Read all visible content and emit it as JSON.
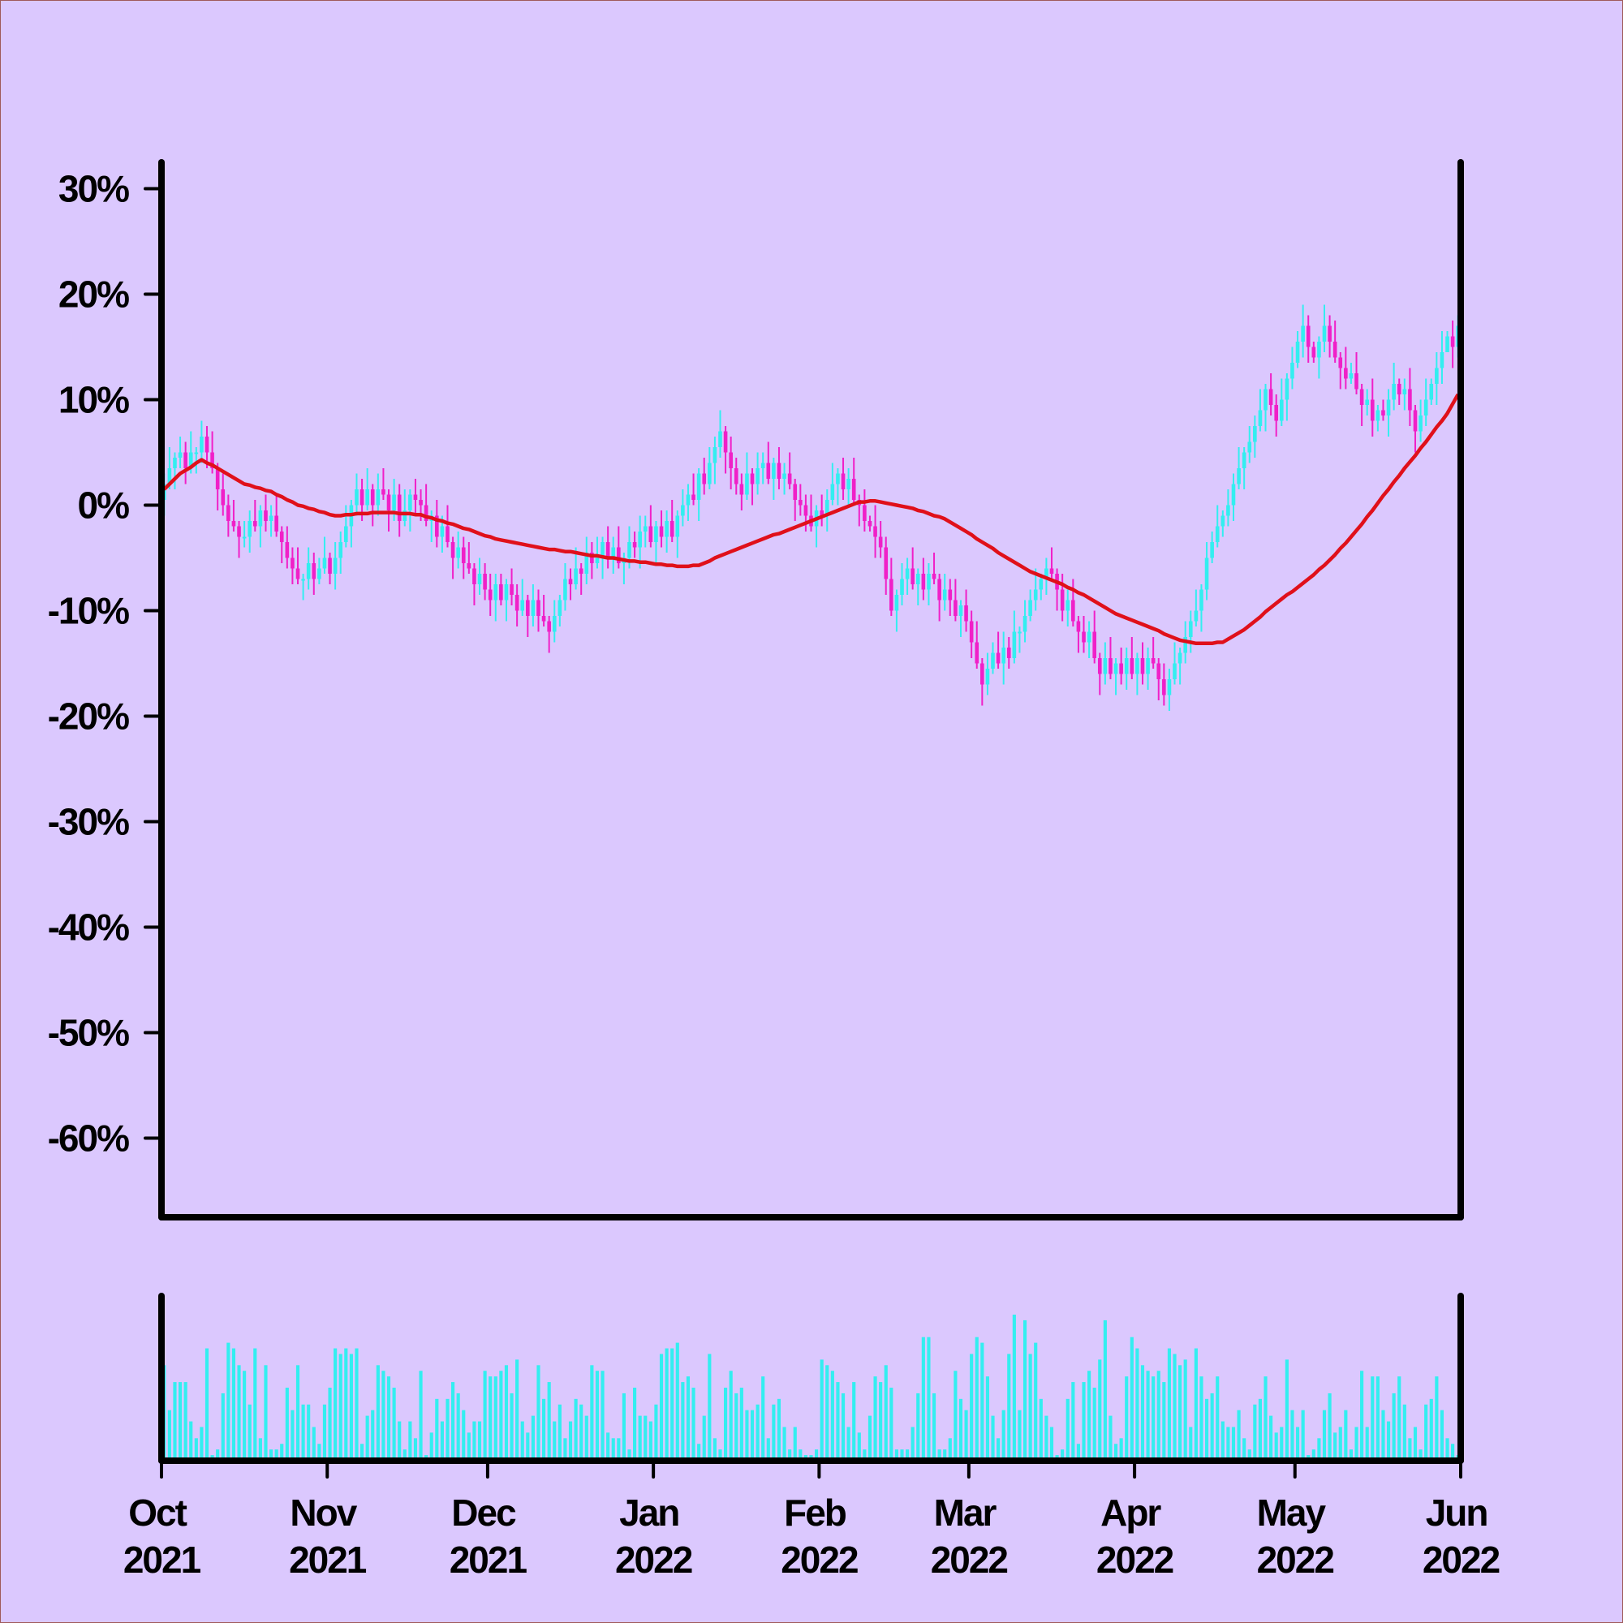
{
  "chart_data": {
    "type": "candlestick",
    "xlim": [
      0,
      243
    ],
    "xticks": [
      {
        "value": 0,
        "label": "Oct 2021"
      },
      {
        "value": 31,
        "label": "Nov 2021"
      },
      {
        "value": 61,
        "label": "Dec 2021"
      },
      {
        "value": 92,
        "label": "Jan 2022"
      },
      {
        "value": 123,
        "label": "Feb 2022"
      },
      {
        "value": 151,
        "label": "Mar 2022"
      },
      {
        "value": 182,
        "label": "Apr 2022"
      },
      {
        "value": 212,
        "label": "May 2022"
      },
      {
        "value": 243,
        "label": "Jun 2022"
      }
    ],
    "ylim": [
      -67.5,
      32.5
    ],
    "yticks": [
      {
        "value": -60,
        "label": "-60%"
      },
      {
        "value": -50,
        "label": "-50%"
      },
      {
        "value": -40,
        "label": "-40%"
      },
      {
        "value": -30,
        "label": "-30%"
      },
      {
        "value": -20,
        "label": "-20%"
      },
      {
        "value": -10,
        "label": "-10%"
      },
      {
        "value": 0,
        "label": "0%"
      },
      {
        "value": 10,
        "label": "10%"
      },
      {
        "value": 20,
        "label": "20%"
      },
      {
        "value": 30,
        "label": "30%"
      }
    ],
    "up_color": "#33eef0",
    "down_color": "#f020c8",
    "open": [
      0.5,
      2,
      3.5,
      4.5,
      5,
      3.5,
      5,
      5,
      6.5,
      5,
      3.5,
      1.5,
      0,
      -1.5,
      -2,
      -3,
      -3,
      -1.5,
      -2,
      -0.5,
      -1.5,
      -1,
      -2.5,
      -3.5,
      -5,
      -6,
      -7,
      -7,
      -5.5,
      -7,
      -6,
      -5,
      -6.5,
      -5,
      -3.5,
      -2,
      0,
      1.5,
      0,
      1.5,
      0,
      1.5,
      1,
      -0.5,
      1,
      -1.5,
      -0.5,
      1,
      0.5,
      0,
      -1.5,
      -1,
      -3,
      -2,
      -3.5,
      -5,
      -4,
      -5.5,
      -6,
      -7.5,
      -6.5,
      -8,
      -9,
      -7.5,
      -9,
      -7.5,
      -8.5,
      -10,
      -9,
      -10.5,
      -9,
      -10.5,
      -11,
      -12,
      -10.5,
      -9,
      -7,
      -7.5,
      -6,
      -6.5,
      -4.5,
      -5.5,
      -5,
      -3.5,
      -5,
      -4,
      -5.5,
      -5,
      -3.5,
      -4,
      -2.5,
      -2,
      -3.5,
      -2,
      -3,
      -1.5,
      -3,
      -1,
      0,
      1,
      0.5,
      3,
      2,
      4,
      5.5,
      7,
      5,
      3.5,
      2,
      1,
      3,
      2,
      3.5,
      4,
      2.5,
      4,
      2.5,
      3,
      2,
      0.5,
      0,
      -1,
      -2,
      -0.5,
      -1,
      0.5,
      2,
      3,
      1.5,
      2.5,
      0.5,
      0,
      -1.5,
      -2,
      -3,
      -4,
      -7,
      -10,
      -8.5,
      -7,
      -6,
      -7.5,
      -6.5,
      -8,
      -6.5,
      -7,
      -9,
      -8,
      -9,
      -10.5,
      -9.5,
      -11,
      -13,
      -15,
      -17,
      -15.5,
      -14,
      -15,
      -13.5,
      -14.5,
      -12,
      -12,
      -10.5,
      -9,
      -8,
      -7,
      -6,
      -6.5,
      -8,
      -10,
      -9,
      -11,
      -12,
      -13,
      -12,
      -14.5,
      -16,
      -14.5,
      -16,
      -15,
      -16,
      -14.5,
      -16,
      -14.5,
      -16,
      -14.5,
      -15,
      -16.5,
      -18,
      -16.5,
      -15,
      -14,
      -12.5,
      -11,
      -10,
      -8,
      -5,
      -3.5,
      -2,
      -1,
      0,
      2,
      3.5,
      5,
      6,
      7.5,
      9,
      11,
      9.5,
      8,
      10,
      12,
      13.5,
      15.5,
      17,
      15,
      14,
      15.5,
      17,
      15.5,
      14,
      13,
      12,
      12.5,
      11,
      9.5,
      10,
      8,
      9,
      8.5,
      10,
      11.5,
      10.5,
      11,
      9,
      7,
      8.5,
      10,
      11.5,
      13,
      14.5,
      16,
      15
    ],
    "high": [
      3,
      5.5,
      5,
      6.5,
      6,
      7,
      5.5,
      8,
      7.5,
      7,
      4,
      3,
      1,
      0.5,
      -1.5,
      -1.5,
      -0.5,
      0.5,
      0,
      1,
      0,
      1,
      -2,
      -2,
      -4,
      -4,
      -6.5,
      -4,
      -4.5,
      -5,
      -3,
      -4.5,
      -3.5,
      -2.5,
      0,
      0.5,
      3,
      2.5,
      3.5,
      2,
      3,
      3.5,
      1.5,
      2.5,
      2,
      1.5,
      1.5,
      2.5,
      1.5,
      2,
      -0.5,
      0.5,
      -1,
      0,
      -3,
      -2.5,
      -3,
      -3.5,
      -5.5,
      -5,
      -5.5,
      -6.5,
      -6.5,
      -6.5,
      -7,
      -6,
      -7.5,
      -7,
      -8.5,
      -7.5,
      -8,
      -8.5,
      -10.5,
      -9,
      -8.5,
      -5.5,
      -6,
      -4,
      -5.5,
      -3,
      -3.5,
      -3,
      -3,
      -2,
      -3,
      -2,
      -4.5,
      -2,
      -2.5,
      -1,
      -1,
      0,
      -1.5,
      -0.5,
      -0.5,
      0.5,
      -0.5,
      1.5,
      2,
      3,
      3.5,
      4.5,
      5.5,
      6.5,
      9,
      7.5,
      6.5,
      4.5,
      3,
      5,
      3.5,
      5,
      5,
      6,
      4.5,
      5.5,
      4,
      5,
      2.5,
      2,
      1,
      1,
      0,
      1,
      1.5,
      4,
      3.5,
      4.5,
      3.5,
      4.5,
      1,
      1.5,
      -1,
      0,
      -1.5,
      -3,
      -5,
      -8,
      -5.5,
      -5,
      -4,
      -6,
      -5,
      -5.5,
      -4.5,
      -6.5,
      -6.5,
      -7,
      -7,
      -9,
      -8,
      -10,
      -11,
      -14.5,
      -14,
      -13,
      -12,
      -12,
      -12.5,
      -10,
      -11.5,
      -9,
      -8,
      -6,
      -6.5,
      -5,
      -4,
      -6,
      -6.5,
      -8,
      -7,
      -10.5,
      -10.5,
      -11,
      -10,
      -14,
      -13,
      -12.5,
      -14.5,
      -13.5,
      -13.5,
      -12.5,
      -14,
      -13,
      -13.5,
      -12.5,
      -14.5,
      -15,
      -15.5,
      -13,
      -13.5,
      -11,
      -10,
      -8,
      -7.5,
      -3.5,
      -2.5,
      0,
      -0.5,
      1.5,
      3,
      5.5,
      5.5,
      7.5,
      8.5,
      11,
      11.5,
      12.5,
      10.5,
      12,
      12.5,
      15,
      16.5,
      19,
      18,
      15.5,
      16,
      19,
      18,
      17.5,
      14.5,
      15,
      13.5,
      14.5,
      11.5,
      11,
      12,
      9.5,
      10,
      11,
      13.5,
      12,
      12,
      13,
      9.5,
      10,
      12,
      12,
      14.5,
      16.5,
      16.5,
      17.5,
      18
    ],
    "low": [
      -1,
      1.5,
      1.5,
      3.5,
      2,
      3,
      3,
      4,
      3.5,
      3,
      -0.5,
      -1,
      -3,
      -2.5,
      -5,
      -4,
      -4.5,
      -2.5,
      -4,
      -2.5,
      -3,
      -3,
      -5.5,
      -6,
      -7.5,
      -7.5,
      -9,
      -8,
      -8.5,
      -7.5,
      -6.5,
      -7.5,
      -8,
      -6.5,
      -4,
      -4,
      -1,
      -1.5,
      -0.5,
      -2,
      -1,
      0.5,
      -2.5,
      -1.5,
      -3,
      -2,
      -2.5,
      -1,
      -1.5,
      -2,
      -3.5,
      -4,
      -4.5,
      -4,
      -7,
      -6,
      -7,
      -6.5,
      -9.5,
      -8.5,
      -9,
      -10.5,
      -11,
      -9.5,
      -11,
      -9.5,
      -11.5,
      -10.5,
      -12.5,
      -11.5,
      -12,
      -11.5,
      -14,
      -13,
      -11.5,
      -10,
      -9,
      -8,
      -8.5,
      -7.5,
      -7,
      -6,
      -7,
      -6,
      -6.5,
      -6,
      -7.5,
      -6,
      -5,
      -6,
      -4,
      -4,
      -5.5,
      -4,
      -4.5,
      -3.5,
      -5,
      -2,
      -1.5,
      0,
      -1.5,
      1,
      1.5,
      2,
      4.5,
      3,
      1.5,
      1,
      -0.5,
      0.5,
      0,
      1,
      2,
      2,
      0.5,
      1.5,
      1,
      1.5,
      -1.5,
      -1,
      -2.5,
      -2.5,
      -4,
      -2,
      -2.5,
      0,
      0,
      0.5,
      0,
      0,
      -2,
      -2.5,
      -2.5,
      -5,
      -5,
      -8.5,
      -10.5,
      -12,
      -9.5,
      -8.5,
      -8,
      -9.5,
      -9,
      -9.5,
      -7.5,
      -11,
      -10,
      -10.5,
      -11,
      -12.5,
      -12,
      -14.5,
      -15.5,
      -19,
      -18,
      -16,
      -15.5,
      -17,
      -15.5,
      -15,
      -14,
      -13,
      -11,
      -10,
      -9,
      -8.5,
      -7,
      -10,
      -11,
      -11.5,
      -11.5,
      -14,
      -14,
      -14.5,
      -15,
      -18,
      -17,
      -16.5,
      -18,
      -17,
      -17.5,
      -16.5,
      -18,
      -17,
      -17.5,
      -15.5,
      -18.5,
      -19,
      -19.5,
      -17,
      -17,
      -15,
      -14,
      -11.5,
      -12,
      -9,
      -5.5,
      -4,
      -3,
      -2,
      -1.5,
      1.5,
      1.5,
      4,
      4.5,
      7,
      7,
      8.5,
      6.5,
      7.5,
      8,
      11,
      13,
      14,
      13.5,
      13.5,
      12,
      14.5,
      14,
      13.5,
      11,
      11,
      11.5,
      10.5,
      7.5,
      8.5,
      6.5,
      7,
      8,
      6.5,
      9,
      9.5,
      9,
      7.5,
      5,
      6,
      7.5,
      9.5,
      9.5,
      11.5,
      14.5,
      13,
      14
    ],
    "close": [
      2,
      3.5,
      4.5,
      5,
      3.5,
      5,
      5,
      6.5,
      5,
      3.5,
      1.5,
      0,
      -1.5,
      -2,
      -3,
      -3,
      -1.5,
      -2,
      -0.5,
      -1.5,
      -1,
      -2.5,
      -3.5,
      -5,
      -6,
      -7,
      -7,
      -5.5,
      -7,
      -6,
      -5,
      -6.5,
      -5,
      -3.5,
      -2,
      0,
      1.5,
      0,
      1.5,
      0,
      1.5,
      1,
      -0.5,
      1,
      -1.5,
      -0.5,
      1,
      0.5,
      0,
      -1.5,
      -1,
      -3,
      -2,
      -3.5,
      -5,
      -4,
      -5.5,
      -6,
      -7.5,
      -6.5,
      -8,
      -9,
      -7.5,
      -9,
      -7.5,
      -8.5,
      -10,
      -9,
      -10.5,
      -9,
      -10.5,
      -11,
      -12,
      -10.5,
      -9,
      -7,
      -7.5,
      -6,
      -6.5,
      -4.5,
      -5.5,
      -5,
      -3.5,
      -5,
      -4,
      -5.5,
      -5,
      -3.5,
      -4,
      -2.5,
      -2,
      -3.5,
      -2,
      -3,
      -1.5,
      -3,
      -1,
      0,
      1,
      0.5,
      3,
      2,
      4,
      5.5,
      7,
      5,
      3.5,
      2,
      1,
      3,
      2,
      3.5,
      4,
      2.5,
      4,
      2.5,
      3,
      2,
      0.5,
      0,
      -1,
      -2,
      -0.5,
      -1,
      0.5,
      2,
      3,
      1.5,
      2.5,
      0.5,
      0,
      -1.5,
      -2,
      -3,
      -4,
      -7,
      -10,
      -8.5,
      -7,
      -6,
      -7.5,
      -6.5,
      -8,
      -6.5,
      -7,
      -9,
      -8,
      -9,
      -10.5,
      -9.5,
      -11,
      -13,
      -15,
      -17,
      -15.5,
      -14,
      -15,
      -13.5,
      -14.5,
      -12,
      -12,
      -10.5,
      -9,
      -8,
      -7,
      -6,
      -6.5,
      -8,
      -10,
      -9,
      -11,
      -12,
      -13,
      -12,
      -14.5,
      -16,
      -14.5,
      -16,
      -15,
      -16,
      -14.5,
      -16,
      -14.5,
      -16,
      -14.5,
      -15,
      -16.5,
      -18,
      -16.5,
      -15,
      -14,
      -12.5,
      -11,
      -10,
      -8,
      -5,
      -3.5,
      -2,
      -1,
      0,
      2,
      3.5,
      5,
      6,
      7.5,
      9,
      11,
      9.5,
      8,
      10,
      12,
      13.5,
      15.5,
      17,
      15,
      14,
      15.5,
      17,
      15.5,
      14,
      13,
      12,
      12.5,
      11,
      9.5,
      10,
      8,
      9,
      8.5,
      10,
      11.5,
      10.5,
      11,
      9,
      7,
      8.5,
      10,
      11.5,
      13,
      14.5,
      16,
      15,
      17
    ],
    "moving_average": {
      "color": "#e0101a",
      "values": [
        1.5,
        2,
        2.5,
        3,
        3.3,
        3.6,
        4,
        4.3,
        4,
        3.8,
        3.5,
        3.2,
        2.9,
        2.6,
        2.3,
        2,
        1.9,
        1.7,
        1.6,
        1.4,
        1.3,
        1,
        0.8,
        0.5,
        0.3,
        0,
        -0.1,
        -0.3,
        -0.4,
        -0.6,
        -0.7,
        -0.9,
        -1,
        -1,
        -0.9,
        -0.9,
        -0.8,
        -0.8,
        -0.8,
        -0.7,
        -0.7,
        -0.7,
        -0.7,
        -0.7,
        -0.8,
        -0.8,
        -0.8,
        -0.9,
        -0.9,
        -1.1,
        -1.2,
        -1.4,
        -1.5,
        -1.7,
        -1.8,
        -2,
        -2.2,
        -2.3,
        -2.5,
        -2.7,
        -2.9,
        -3,
        -3.2,
        -3.3,
        -3.4,
        -3.5,
        -3.6,
        -3.7,
        -3.8,
        -3.9,
        -4,
        -4.1,
        -4.2,
        -4.2,
        -4.3,
        -4.4,
        -4.4,
        -4.5,
        -4.6,
        -4.7,
        -4.8,
        -4.8,
        -4.9,
        -5,
        -5,
        -5.1,
        -5.2,
        -5.3,
        -5.3,
        -5.4,
        -5.4,
        -5.5,
        -5.6,
        -5.6,
        -5.7,
        -5.7,
        -5.8,
        -5.8,
        -5.8,
        -5.7,
        -5.7,
        -5.5,
        -5.3,
        -5,
        -4.8,
        -4.6,
        -4.4,
        -4.2,
        -4,
        -3.8,
        -3.6,
        -3.4,
        -3.2,
        -3,
        -2.8,
        -2.7,
        -2.5,
        -2.3,
        -2.1,
        -1.9,
        -1.7,
        -1.5,
        -1.3,
        -1.1,
        -0.9,
        -0.7,
        -0.5,
        -0.3,
        -0.1,
        0.1,
        0.3,
        0.3,
        0.4,
        0.4,
        0.3,
        0.2,
        0.1,
        0,
        -0.1,
        -0.2,
        -0.3,
        -0.5,
        -0.6,
        -0.8,
        -1,
        -1.1,
        -1.3,
        -1.6,
        -1.9,
        -2.2,
        -2.5,
        -2.8,
        -3.2,
        -3.5,
        -3.8,
        -4.1,
        -4.5,
        -4.8,
        -5.1,
        -5.4,
        -5.7,
        -6,
        -6.3,
        -6.5,
        -6.7,
        -6.9,
        -7.1,
        -7.3,
        -7.5,
        -7.8,
        -8,
        -8.3,
        -8.5,
        -8.8,
        -9.1,
        -9.4,
        -9.7,
        -10,
        -10.3,
        -10.5,
        -10.7,
        -10.9,
        -11.1,
        -11.3,
        -11.5,
        -11.7,
        -11.9,
        -12.2,
        -12.4,
        -12.6,
        -12.8,
        -12.9,
        -13,
        -13.1,
        -13.1,
        -13.1,
        -13.1,
        -13,
        -13,
        -12.7,
        -12.4,
        -12.1,
        -11.8,
        -11.4,
        -11,
        -10.6,
        -10.1,
        -9.7,
        -9.3,
        -8.9,
        -8.5,
        -8.2,
        -7.8,
        -7.4,
        -7,
        -6.6,
        -6.1,
        -5.7,
        -5.2,
        -4.7,
        -4.1,
        -3.6,
        -3,
        -2.4,
        -1.8,
        -1.1,
        -0.5,
        0.2,
        0.9,
        1.5,
        2.2,
        2.8,
        3.5,
        4.1,
        4.7,
        5.4,
        6,
        6.7,
        7.4,
        8,
        8.7,
        9.6,
        10.5
      ]
    },
    "volume": {
      "color": "#33eef0",
      "values": [
        85,
        45,
        70,
        70,
        70,
        35,
        20,
        30,
        100,
        5,
        10,
        60,
        105,
        100,
        85,
        80,
        50,
        100,
        20,
        85,
        10,
        10,
        15,
        65,
        45,
        85,
        50,
        50,
        30,
        15,
        50,
        65,
        100,
        95,
        100,
        95,
        100,
        15,
        40,
        45,
        85,
        80,
        75,
        65,
        35,
        10,
        35,
        20,
        80,
        5,
        25,
        55,
        35,
        55,
        70,
        60,
        45,
        25,
        35,
        35,
        80,
        75,
        75,
        80,
        85,
        60,
        90,
        35,
        25,
        40,
        85,
        55,
        70,
        35,
        50,
        20,
        35,
        55,
        50,
        40,
        85,
        80,
        80,
        25,
        20,
        20,
        60,
        10,
        65,
        40,
        40,
        35,
        50,
        95,
        100,
        100,
        105,
        70,
        75,
        65,
        15,
        40,
        95,
        20,
        10,
        65,
        80,
        60,
        65,
        45,
        45,
        50,
        75,
        20,
        50,
        55,
        30,
        10,
        30,
        10,
        5,
        5,
        10,
        90,
        85,
        80,
        70,
        60,
        30,
        70,
        25,
        10,
        40,
        75,
        70,
        85,
        65,
        10,
        10,
        10,
        30,
        60,
        110,
        110,
        60,
        10,
        10,
        20,
        80,
        55,
        45,
        95,
        110,
        105,
        75,
        40,
        20,
        45,
        95,
        130,
        45,
        125,
        95,
        105,
        55,
        40,
        30,
        5,
        10,
        55,
        70,
        15,
        70,
        80,
        65,
        90,
        125,
        40,
        15,
        20,
        75,
        110,
        100,
        85,
        80,
        75,
        80,
        70,
        100,
        95,
        85,
        90,
        30,
        100,
        75,
        55,
        60,
        75,
        35,
        30,
        30,
        45,
        20,
        10,
        50,
        55,
        75,
        40,
        25,
        30,
        90,
        45,
        30,
        45,
        5,
        10,
        20,
        45,
        60,
        25,
        30,
        45,
        10,
        30,
        80,
        30,
        75,
        75,
        45,
        35,
        60,
        75,
        50,
        20,
        30,
        10,
        50,
        55,
        75,
        45,
        20,
        15,
        5
      ]
    }
  }
}
